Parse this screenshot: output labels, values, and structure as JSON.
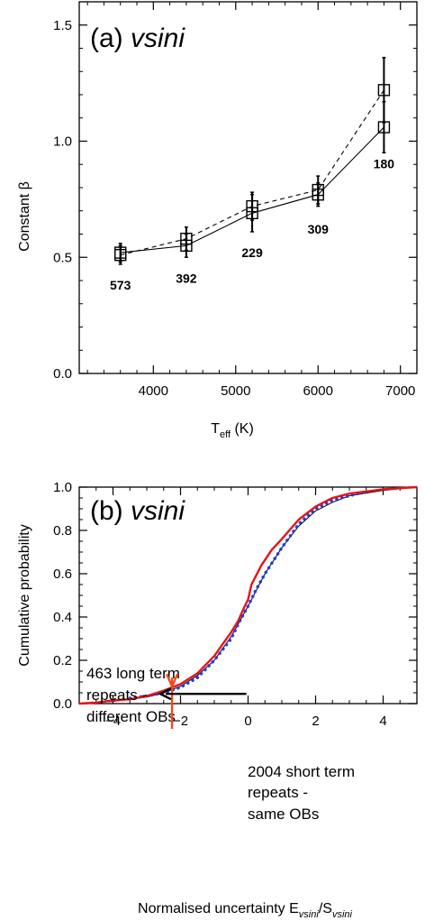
{
  "chart_data": [
    {
      "type": "line",
      "title": "(a) vsini",
      "title_prefix": "(a) ",
      "title_italic": "vsini",
      "ylabel": "Constant β",
      "xlabel_main": "T",
      "xlabel_sub": "eff",
      "xlabel_unit": " (K)",
      "xlim": [
        3100,
        7200
      ],
      "ylim": [
        0.0,
        1.6
      ],
      "xticks": [
        4000,
        5000,
        6000,
        7000
      ],
      "xtick_labels": [
        "4000",
        "5000",
        "6000",
        "7000"
      ],
      "yticks": [
        0.0,
        0.5,
        1.0,
        1.5
      ],
      "ytick_labels": [
        "0.0",
        "0.5",
        "1.0",
        "1.5"
      ],
      "grid": false,
      "x": [
        3600,
        4400,
        5200,
        6000,
        6800
      ],
      "series": [
        {
          "style": "solid",
          "values": [
            0.52,
            0.55,
            0.69,
            0.77,
            1.06
          ],
          "errors": [
            0.04,
            0.05,
            0.08,
            0.05,
            0.11
          ]
        },
        {
          "style": "dashed",
          "values": [
            0.51,
            0.58,
            0.72,
            0.79,
            1.22
          ],
          "errors": [
            0.04,
            0.05,
            0.06,
            0.06,
            0.14
          ]
        }
      ],
      "counts": [
        "573",
        "392",
        "229",
        "309",
        "180"
      ]
    },
    {
      "type": "line",
      "title": "(b) vsini",
      "title_prefix": "(b) ",
      "title_italic": "vsini",
      "ylabel": "Cumulative probability",
      "xlabel_main": "Normalised uncertainty E",
      "xlabel_sub1": "vsini",
      "xlabel_mid": "/S",
      "xlabel_sub2": "vsini",
      "xlim": [
        -5,
        5
      ],
      "ylim": [
        0.0,
        1.0
      ],
      "xticks": [
        -4,
        -2,
        0,
        2,
        4
      ],
      "xtick_labels": [
        "−4",
        "−2",
        "0",
        "2",
        "4"
      ],
      "yticks": [
        0.0,
        0.2,
        0.4,
        0.6,
        0.8,
        1.0
      ],
      "ytick_labels": [
        "0.0",
        "0.2",
        "0.4",
        "0.6",
        "0.8",
        "1.0"
      ],
      "grid": false,
      "series": [
        {
          "style": "red-solid",
          "color": "#e8121a",
          "x": [
            -5.0,
            -4.5,
            -4.0,
            -3.5,
            -3.0,
            -2.5,
            -2.0,
            -1.5,
            -1.0,
            -0.5,
            -0.3,
            -0.1,
            0.0,
            0.1,
            0.2,
            0.4,
            0.7,
            1.0,
            1.5,
            2.0,
            2.5,
            3.0,
            3.5,
            4.0,
            4.5,
            5.0
          ],
          "values": [
            0.0,
            0.005,
            0.015,
            0.02,
            0.035,
            0.06,
            0.09,
            0.14,
            0.22,
            0.33,
            0.38,
            0.45,
            0.48,
            0.55,
            0.58,
            0.64,
            0.71,
            0.76,
            0.85,
            0.91,
            0.95,
            0.97,
            0.98,
            0.99,
            0.995,
            1.0
          ]
        },
        {
          "style": "blue-dotted",
          "color": "#1f3fd8",
          "x": [
            -3.5,
            -3.0,
            -2.5,
            -2.0,
            -1.5,
            -1.0,
            -0.5,
            -0.25,
            0.0,
            0.25,
            0.5,
            1.0,
            1.5,
            2.0,
            2.5,
            3.0,
            3.5
          ],
          "values": [
            0.025,
            0.035,
            0.05,
            0.075,
            0.12,
            0.2,
            0.3,
            0.38,
            0.45,
            0.53,
            0.6,
            0.72,
            0.83,
            0.9,
            0.94,
            0.96,
            0.98
          ]
        },
        {
          "style": "black-thin",
          "color": "#000000",
          "x": [
            -5.0,
            -4.0,
            -3.0,
            -2.5,
            -2.0,
            -1.5,
            -1.0,
            -0.5,
            0.0,
            0.5,
            1.0,
            1.5,
            2.0,
            2.5,
            3.0,
            4.0,
            5.0
          ],
          "values": [
            0.0,
            0.01,
            0.03,
            0.05,
            0.08,
            0.13,
            0.2,
            0.31,
            0.45,
            0.6,
            0.72,
            0.82,
            0.89,
            0.93,
            0.96,
            0.985,
            1.0
          ]
        }
      ],
      "annotations": {
        "long_term": [
          "463 long term",
          "repeats -",
          "different OBs"
        ],
        "short_term": [
          "2004 short term",
          "repeats -",
          "same OBs"
        ],
        "arrow_red_color": "#f04a1c",
        "arrow_black_color": "#000000"
      }
    }
  ]
}
